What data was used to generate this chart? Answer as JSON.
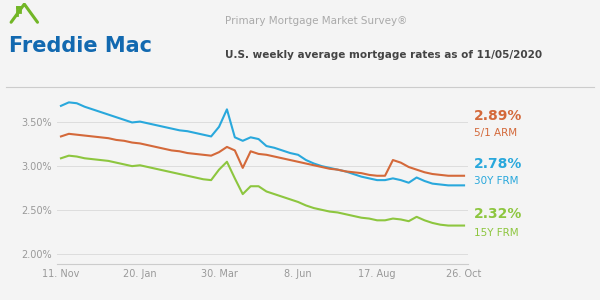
{
  "title1": "Primary Mortgage Market Survey®",
  "title2": "U.S. weekly average mortgage rates as of 11/05/2020",
  "freddie_blue": "#1269b0",
  "freddie_green": "#72b626",
  "x_labels": [
    "11. Nov",
    "20. Jan",
    "30. Mar",
    "8. Jun",
    "17. Aug",
    "26. Oct"
  ],
  "y_ticks": [
    2.0,
    2.5,
    3.0,
    3.5
  ],
  "y_labels": [
    "2.00%",
    "2.50%",
    "3.00%",
    "3.50%"
  ],
  "ylim": [
    1.88,
    3.82
  ],
  "line_30y_color": "#29a8dc",
  "line_15y_color": "#8dc63f",
  "line_arm_color": "#d4693a",
  "background": "#f4f4f4",
  "plot_bg": "#f4f4f4",
  "n_points": 52,
  "x_ticks_pos": [
    0,
    10,
    20,
    30,
    40,
    51
  ],
  "val_arm_color": "#d4693a",
  "val_30y_color": "#29a8dc",
  "val_15y_color": "#8dc63f"
}
